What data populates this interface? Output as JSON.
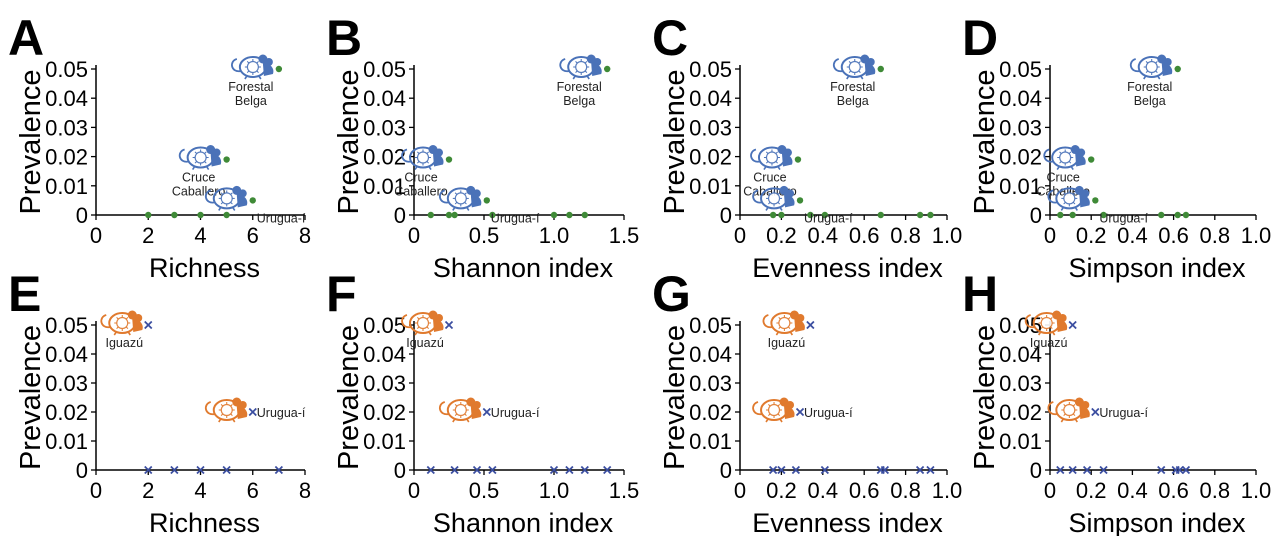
{
  "colors": {
    "green": "#3f8a37",
    "blue_marker": "#3b4ea0",
    "mouse_blue": "#4a72b8",
    "mouse_orange": "#e07a2e",
    "axis": "#000000"
  },
  "y_label": "Prevalence",
  "y_ticks": [
    "0",
    "0.01",
    "0.02",
    "0.03",
    "0.04",
    "0.05"
  ],
  "chart_data": [
    {
      "panel": "A",
      "type": "scatter",
      "xlabel": "Richness",
      "ylabel": "Prevalence",
      "xlim": [
        0,
        8
      ],
      "ylim": [
        0,
        0.05
      ],
      "x_ticks": [
        "0",
        "2",
        "4",
        "6",
        "8"
      ],
      "y_ticks": [
        "0",
        "0.01",
        "0.02",
        "0.03",
        "0.04",
        "0.05"
      ],
      "marker": "dot",
      "color": "#3f8a37",
      "mouse": "blue",
      "points": [
        {
          "x": 2,
          "y": 0
        },
        {
          "x": 3,
          "y": 0
        },
        {
          "x": 4,
          "y": 0
        },
        {
          "x": 5,
          "y": 0
        },
        {
          "x": 7,
          "y": 0.05,
          "label": [
            "Forestal",
            "Belga"
          ]
        },
        {
          "x": 5,
          "y": 0.019,
          "label": [
            "Cruce",
            "Caballero"
          ]
        },
        {
          "x": 6,
          "y": 0.005,
          "label": [
            "Urugua-í"
          ]
        }
      ]
    },
    {
      "panel": "B",
      "type": "scatter",
      "xlabel": "Shannon index",
      "ylabel": "Prevalence",
      "xlim": [
        0,
        1.5
      ],
      "ylim": [
        0,
        0.05
      ],
      "x_ticks": [
        "0",
        "0.5",
        "1.0",
        "1.5"
      ],
      "y_ticks": [
        "0",
        "0.01",
        "0.02",
        "0.03",
        "0.04",
        "0.05"
      ],
      "marker": "dot",
      "color": "#3f8a37",
      "mouse": "blue",
      "points": [
        {
          "x": 0.12,
          "y": 0
        },
        {
          "x": 0.25,
          "y": 0
        },
        {
          "x": 0.29,
          "y": 0
        },
        {
          "x": 0.56,
          "y": 0
        },
        {
          "x": 1.0,
          "y": 0
        },
        {
          "x": 1.11,
          "y": 0
        },
        {
          "x": 1.22,
          "y": 0
        },
        {
          "x": 1.38,
          "y": 0.05,
          "label": [
            "Forestal",
            "Belga"
          ]
        },
        {
          "x": 0.25,
          "y": 0.019,
          "label": [
            "Cruce",
            "Caballero"
          ]
        },
        {
          "x": 0.52,
          "y": 0.005,
          "label": [
            "Urugua-í"
          ]
        }
      ]
    },
    {
      "panel": "C",
      "type": "scatter",
      "xlabel": "Evenness index",
      "ylabel": "Prevalence",
      "xlim": [
        0,
        1.0
      ],
      "ylim": [
        0,
        0.05
      ],
      "x_ticks": [
        "0",
        "0.2",
        "0.4",
        "0.6",
        "0.8",
        "1.0"
      ],
      "y_ticks": [
        "0",
        "0.01",
        "0.02",
        "0.03",
        "0.04",
        "0.05"
      ],
      "marker": "dot",
      "color": "#3f8a37",
      "mouse": "blue",
      "points": [
        {
          "x": 0.16,
          "y": 0
        },
        {
          "x": 0.2,
          "y": 0
        },
        {
          "x": 0.34,
          "y": 0
        },
        {
          "x": 0.41,
          "y": 0
        },
        {
          "x": 0.68,
          "y": 0
        },
        {
          "x": 0.87,
          "y": 0
        },
        {
          "x": 0.92,
          "y": 0
        },
        {
          "x": 0.68,
          "y": 0.05,
          "label": [
            "Forestal",
            "Belga"
          ]
        },
        {
          "x": 0.28,
          "y": 0.019,
          "label": [
            "Cruce",
            "Caballero"
          ]
        },
        {
          "x": 0.29,
          "y": 0.005,
          "label": [
            "Urugua-í"
          ]
        }
      ]
    },
    {
      "panel": "D",
      "type": "scatter",
      "xlabel": "Simpson index",
      "ylabel": "Prevalence",
      "xlim": [
        0,
        1.0
      ],
      "ylim": [
        0,
        0.05
      ],
      "x_ticks": [
        "0",
        "0.2",
        "0.4",
        "0.6",
        "0.8",
        "1.0"
      ],
      "y_ticks": [
        "0",
        "0.01",
        "0.02",
        "0.03",
        "0.04",
        "0.05"
      ],
      "marker": "dot",
      "color": "#3f8a37",
      "mouse": "blue",
      "points": [
        {
          "x": 0.05,
          "y": 0
        },
        {
          "x": 0.11,
          "y": 0
        },
        {
          "x": 0.26,
          "y": 0
        },
        {
          "x": 0.54,
          "y": 0
        },
        {
          "x": 0.62,
          "y": 0
        },
        {
          "x": 0.66,
          "y": 0
        },
        {
          "x": 0.62,
          "y": 0.05,
          "label": [
            "Forestal",
            "Belga"
          ]
        },
        {
          "x": 0.2,
          "y": 0.019,
          "label": [
            "Cruce",
            "Caballero"
          ]
        },
        {
          "x": 0.22,
          "y": 0.005,
          "label": [
            "Urugua-í"
          ]
        }
      ]
    },
    {
      "panel": "E",
      "type": "scatter",
      "xlabel": "Richness",
      "ylabel": "Prevalence",
      "xlim": [
        0,
        8
      ],
      "ylim": [
        0,
        0.05
      ],
      "x_ticks": [
        "0",
        "2",
        "4",
        "6",
        "8"
      ],
      "y_ticks": [
        "0",
        "0.01",
        "0.02",
        "0.03",
        "0.04",
        "0.05"
      ],
      "marker": "cross",
      "color": "#3b4ea0",
      "mouse": "orange",
      "points": [
        {
          "x": 2,
          "y": 0
        },
        {
          "x": 3,
          "y": 0
        },
        {
          "x": 4,
          "y": 0
        },
        {
          "x": 5,
          "y": 0
        },
        {
          "x": 7,
          "y": 0
        },
        {
          "x": 2,
          "y": 0.05,
          "label": [
            "Iguazú"
          ]
        },
        {
          "x": 6,
          "y": 0.02,
          "label": [
            "Urugua-í"
          ]
        }
      ]
    },
    {
      "panel": "F",
      "type": "scatter",
      "xlabel": "Shannon index",
      "ylabel": "Prevalence",
      "xlim": [
        0,
        1.5
      ],
      "ylim": [
        0,
        0.05
      ],
      "x_ticks": [
        "0",
        "0.5",
        "1.0",
        "1.5"
      ],
      "y_ticks": [
        "0",
        "0.01",
        "0.02",
        "0.03",
        "0.04",
        "0.05"
      ],
      "marker": "cross",
      "color": "#3b4ea0",
      "mouse": "orange",
      "points": [
        {
          "x": 0.12,
          "y": 0
        },
        {
          "x": 0.29,
          "y": 0
        },
        {
          "x": 0.45,
          "y": 0
        },
        {
          "x": 0.56,
          "y": 0
        },
        {
          "x": 1.0,
          "y": 0
        },
        {
          "x": 1.11,
          "y": 0
        },
        {
          "x": 1.22,
          "y": 0
        },
        {
          "x": 1.38,
          "y": 0
        },
        {
          "x": 0.25,
          "y": 0.05,
          "label": [
            "Iguazú"
          ]
        },
        {
          "x": 0.52,
          "y": 0.02,
          "label": [
            "Urugua-í"
          ]
        }
      ]
    },
    {
      "panel": "G",
      "type": "scatter",
      "xlabel": "Evenness index",
      "ylabel": "Prevalence",
      "xlim": [
        0,
        1.0
      ],
      "ylim": [
        0,
        0.05
      ],
      "x_ticks": [
        "0",
        "0.2",
        "0.4",
        "0.6",
        "0.8",
        "1.0"
      ],
      "y_ticks": [
        "0",
        "0.01",
        "0.02",
        "0.03",
        "0.04",
        "0.05"
      ],
      "marker": "cross",
      "color": "#3b4ea0",
      "mouse": "orange",
      "points": [
        {
          "x": 0.16,
          "y": 0
        },
        {
          "x": 0.2,
          "y": 0
        },
        {
          "x": 0.27,
          "y": 0
        },
        {
          "x": 0.41,
          "y": 0
        },
        {
          "x": 0.68,
          "y": 0
        },
        {
          "x": 0.7,
          "y": 0
        },
        {
          "x": 0.87,
          "y": 0
        },
        {
          "x": 0.92,
          "y": 0
        },
        {
          "x": 0.34,
          "y": 0.05,
          "label": [
            "Iguazú"
          ]
        },
        {
          "x": 0.29,
          "y": 0.02,
          "label": [
            "Urugua-í"
          ]
        }
      ]
    },
    {
      "panel": "H",
      "type": "scatter",
      "xlabel": "Simpson index",
      "ylabel": "Prevalence",
      "xlim": [
        0,
        1.0
      ],
      "ylim": [
        0,
        0.05
      ],
      "x_ticks": [
        "0",
        "0.2",
        "0.4",
        "0.6",
        "0.8",
        "1.0"
      ],
      "y_ticks": [
        "0",
        "0.01",
        "0.02",
        "0.03",
        "0.04",
        "0.05"
      ],
      "marker": "cross",
      "color": "#3b4ea0",
      "mouse": "orange",
      "points": [
        {
          "x": 0.05,
          "y": 0
        },
        {
          "x": 0.11,
          "y": 0
        },
        {
          "x": 0.18,
          "y": 0
        },
        {
          "x": 0.26,
          "y": 0
        },
        {
          "x": 0.54,
          "y": 0
        },
        {
          "x": 0.61,
          "y": 0
        },
        {
          "x": 0.63,
          "y": 0
        },
        {
          "x": 0.66,
          "y": 0
        },
        {
          "x": 0.11,
          "y": 0.05,
          "label": [
            "Iguazú"
          ]
        },
        {
          "x": 0.22,
          "y": 0.02,
          "label": [
            "Urugua-í"
          ]
        }
      ]
    }
  ]
}
